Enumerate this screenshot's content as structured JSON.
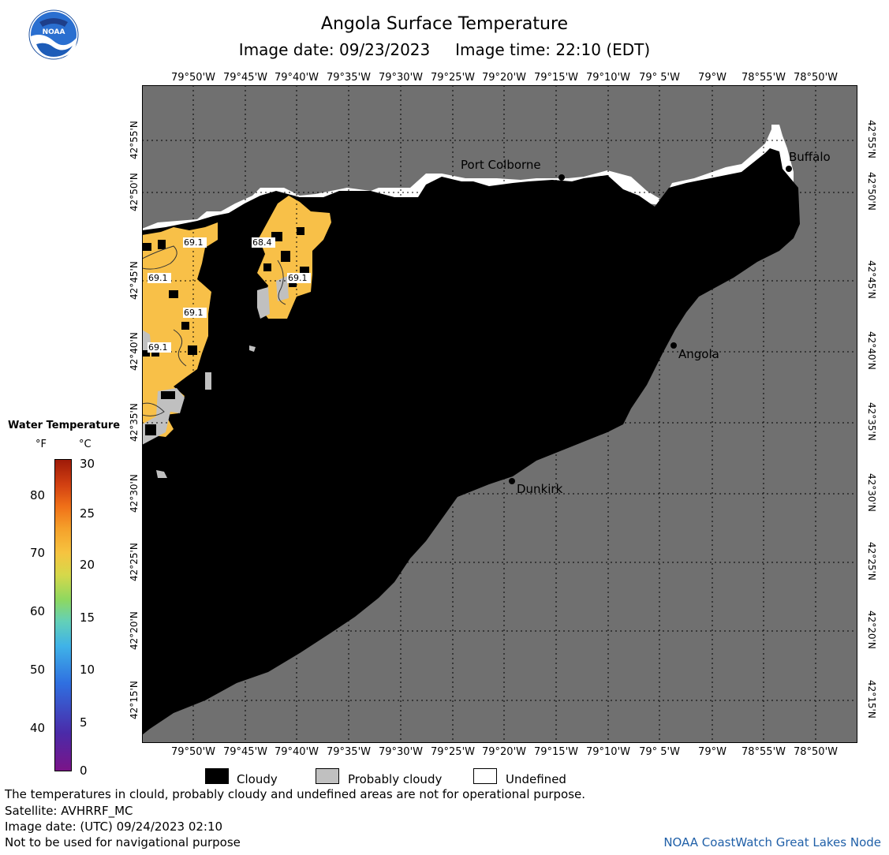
{
  "header": {
    "title": "Angola Surface Temperature",
    "image_date_label": "Image date: 09/23/2023",
    "image_time_label": "Image time: 22:10 (EDT)"
  },
  "logo": {
    "text": "NOAA"
  },
  "map": {
    "lon_ticks": [
      "79°50'W",
      "79°45'W",
      "79°40'W",
      "79°35'W",
      "79°30'W",
      "79°25'W",
      "79°20'W",
      "79°15'W",
      "79°10'W",
      "79° 5'W",
      "79°W",
      "78°55'W",
      "78°50'W"
    ],
    "lat_ticks": [
      "42°55'N",
      "42°50'N",
      "42°45'N",
      "42°40'N",
      "42°35'N",
      "42°30'N",
      "42°25'N",
      "42°20'N",
      "42°15'N"
    ],
    "places": {
      "port_colborne": "Port Colborne",
      "buffalo": "Buffalo",
      "angola": "Angola",
      "dunkirk": "Dunkirk"
    },
    "isotherm_labels": [
      "69.1",
      "68.4",
      "69.1",
      "69.1",
      "69.1",
      "69.1"
    ],
    "colors": {
      "land": "#707070",
      "cloudy": "#000000",
      "probably_cloudy": "#c0c0c0",
      "undefined": "#ffffff",
      "water_warm": "#f8c048",
      "grid": "#000000"
    }
  },
  "legend": {
    "title": "Water Temperature",
    "unit_f": "°F",
    "unit_c": "°C",
    "fahrenheit_ticks": [
      "80",
      "70",
      "60",
      "50",
      "40"
    ],
    "celsius_ticks": [
      "30",
      "25",
      "20",
      "15",
      "10",
      "5",
      "0"
    ],
    "keys": {
      "cloudy": "Cloudy",
      "probably_cloudy": "Probably cloudy",
      "undefined": "Undefined"
    }
  },
  "footer": {
    "disclaimer": "The temperatures in clould, probably cloudy and undefined areas are not for operational purpose.",
    "satellite": "Satellite: AVHRRF_MC",
    "utc_date": "Image date: (UTC) 09/24/2023  02:10",
    "navigation": "Not to be used for navigational purpose",
    "credit": "NOAA CoastWatch Great Lakes Node"
  }
}
